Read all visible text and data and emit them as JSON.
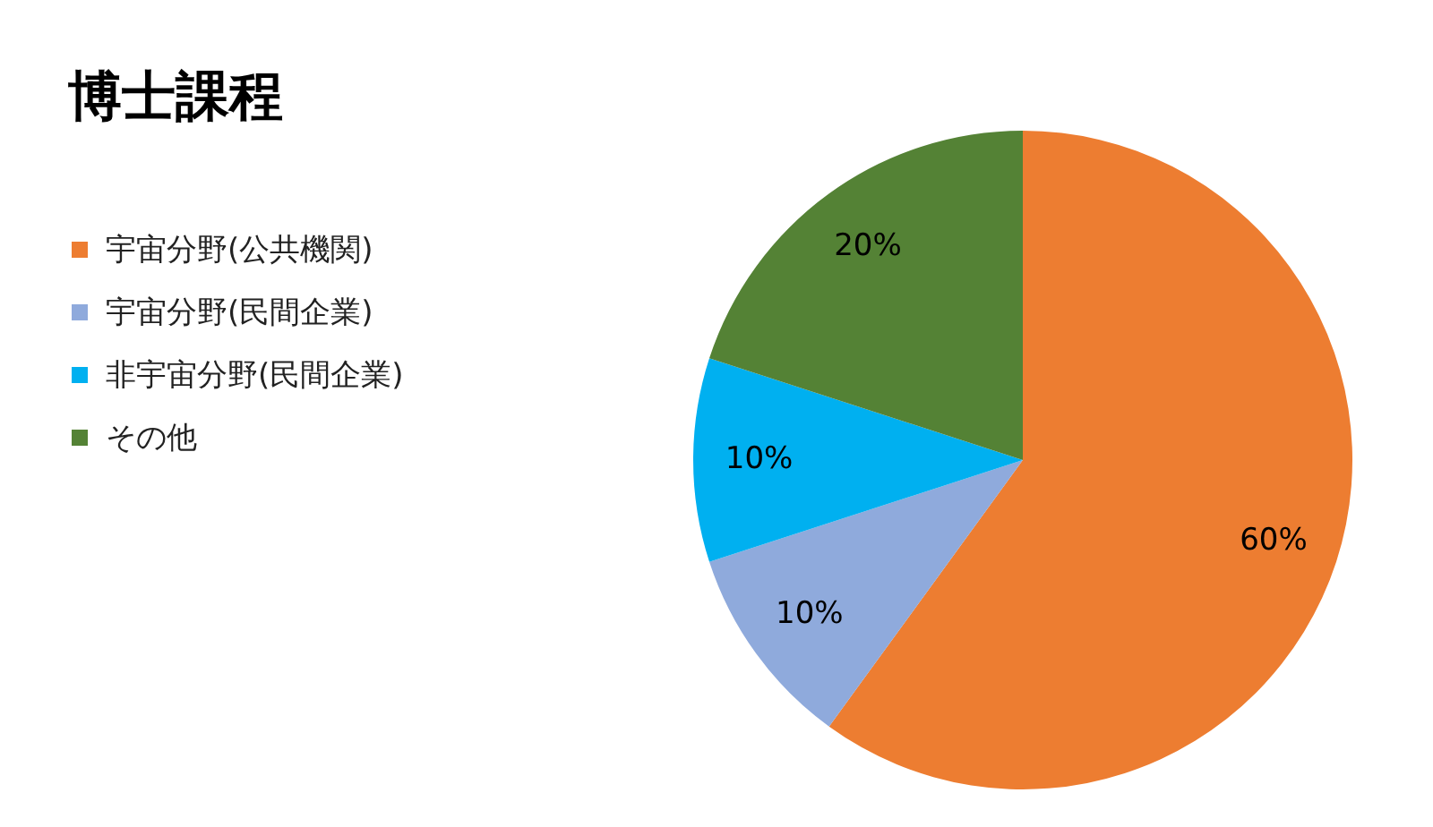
{
  "chart_data": {
    "type": "pie",
    "title": "博士課程",
    "categories": [
      "宇宙分野(公共機関)",
      "宇宙分野(民間企業)",
      "非宇宙分野(民間企業)",
      "その他"
    ],
    "values": [
      60,
      10,
      10,
      20
    ],
    "colors": [
      "#ed7d31",
      "#8faadc",
      "#00b0f0",
      "#548235"
    ],
    "value_labels": [
      "60%",
      "10%",
      "10%",
      "20%"
    ],
    "legend": "left"
  }
}
